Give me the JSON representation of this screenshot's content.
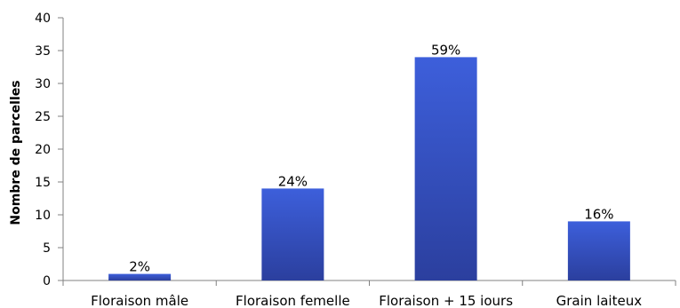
{
  "chart_data": {
    "type": "bar",
    "title": "",
    "xlabel": "",
    "ylabel": "Nombre de parcelles",
    "categories": [
      "Floraison mâle",
      "Floraison femelle",
      "Floraison + 15 iours",
      "Grain laiteux"
    ],
    "values": [
      1,
      14,
      34,
      9
    ],
    "data_labels": [
      "2%",
      "24%",
      "59%",
      "16%"
    ],
    "ylim": [
      0,
      40
    ],
    "yticks": [
      0,
      5,
      10,
      15,
      20,
      25,
      30,
      35,
      40
    ],
    "grid": false,
    "legend": "none",
    "colors": {
      "bar_top": "#3D5FDB",
      "bar_bottom": "#2B3F9E",
      "axis": "#808080"
    }
  }
}
